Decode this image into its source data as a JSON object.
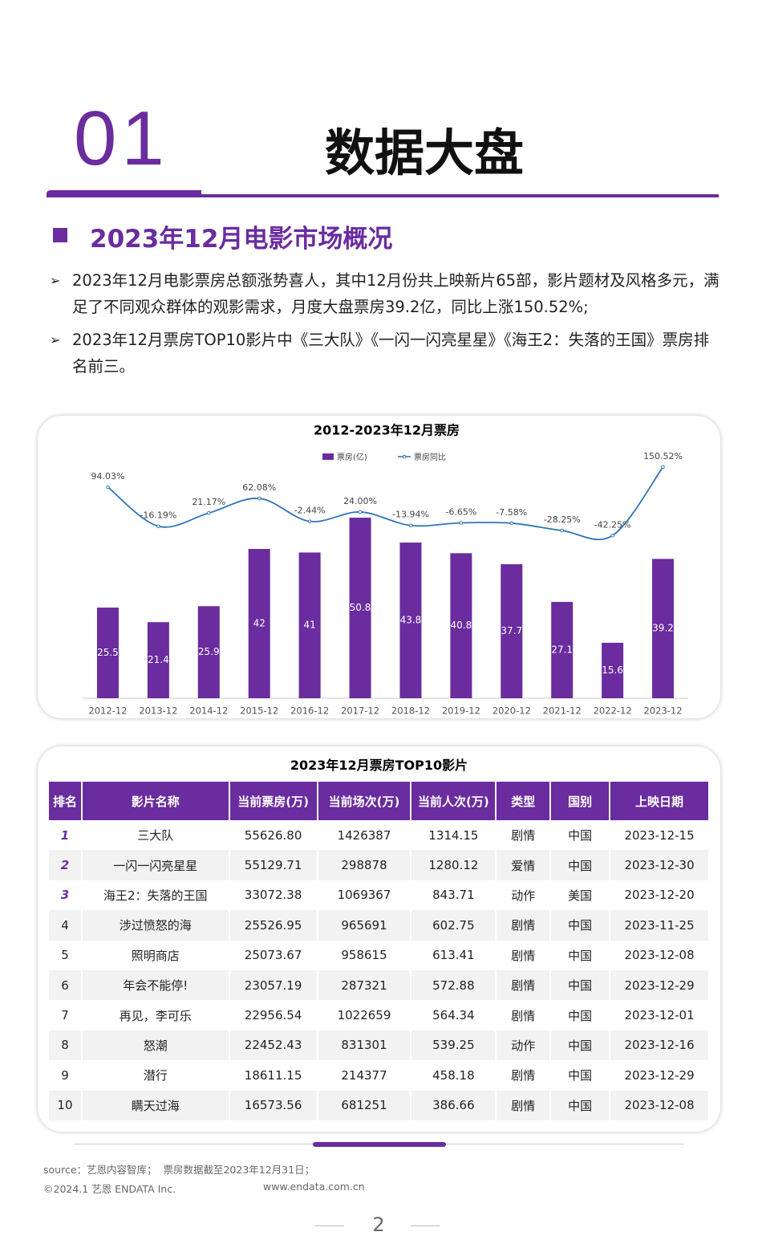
{
  "header": {
    "number": "01",
    "title": "数据大盘"
  },
  "section": {
    "title": "2023年12月电影市场概况",
    "bullets": [
      "2023年12月电影票房总额涨势喜人，其中12月份共上映新片65部，影片题材及风格多元，满足了不同观众群体的观影需求，月度大盘票房39.2亿，同比上涨150.52%;",
      "2023年12月票房TOP10影片中《三大队》《一闪一闪亮星星》《海王2：失落的王国》票房排名前三。"
    ]
  },
  "chart_data": {
    "type": "bar-line",
    "title": "2012-2023年12月票房",
    "categories": [
      "2012-12",
      "2013-12",
      "2014-12",
      "2015-12",
      "2016-12",
      "2017-12",
      "2018-12",
      "2019-12",
      "2020-12",
      "2021-12",
      "2022-12",
      "2023-12"
    ],
    "series": [
      {
        "name": "票房(亿)",
        "type": "bar",
        "color": "#6a2c9e",
        "values": [
          25.5,
          21.4,
          25.9,
          42.0,
          41.0,
          50.8,
          43.8,
          40.8,
          37.7,
          27.1,
          15.6,
          39.2
        ]
      },
      {
        "name": "票房同比",
        "type": "line",
        "axis": "y2",
        "color": "#2e75b6",
        "values": [
          94.03,
          -16.19,
          21.17,
          62.08,
          -2.44,
          24.0,
          -13.94,
          -6.65,
          -7.58,
          -28.25,
          -42.25,
          150.52
        ],
        "value_labels": [
          "94.03%",
          "-16.19%",
          "21.17%",
          "62.08%",
          "-2.44%",
          "24.00%",
          "-13.94%",
          "-6.65%",
          "-7.58%",
          "-28.25%",
          "-42.25%",
          "150.52%"
        ]
      }
    ],
    "ylim": [
      0,
      70
    ],
    "y2lim": [
      -500,
      200
    ],
    "legend": "top"
  },
  "table": {
    "title": "2023年12月票房TOP10影片",
    "headers": [
      "排名",
      "影片名称",
      "当前票房(万)",
      "当前场次(万)",
      "当前人次(万)",
      "类型",
      "国别",
      "上映日期"
    ],
    "rows": [
      [
        "1",
        "三大队",
        "55626.80",
        "1426387",
        "1314.15",
        "剧情",
        "中国",
        "2023-12-15"
      ],
      [
        "2",
        "一闪一闪亮星星",
        "55129.71",
        "298878",
        "1280.12",
        "爱情",
        "中国",
        "2023-12-30"
      ],
      [
        "3",
        "海王2：失落的王国",
        "33072.38",
        "1069367",
        "843.71",
        "动作",
        "美国",
        "2023-12-20"
      ],
      [
        "4",
        "涉过愤怒的海",
        "25526.95",
        "965691",
        "602.75",
        "剧情",
        "中国",
        "2023-11-25"
      ],
      [
        "5",
        "照明商店",
        "25073.67",
        "958615",
        "613.41",
        "剧情",
        "中国",
        "2023-12-08"
      ],
      [
        "6",
        "年会不能停!",
        "23057.19",
        "287321",
        "572.88",
        "剧情",
        "中国",
        "2023-12-29"
      ],
      [
        "7",
        "再见，李可乐",
        "22956.54",
        "1022659",
        "564.34",
        "剧情",
        "中国",
        "2023-12-01"
      ],
      [
        "8",
        "怒潮",
        "22452.43",
        "831301",
        "539.25",
        "动作",
        "中国",
        "2023-12-16"
      ],
      [
        "9",
        "潜行",
        "18611.15",
        "214377",
        "458.18",
        "剧情",
        "中国",
        "2023-12-29"
      ],
      [
        "10",
        "瞒天过海",
        "16573.56",
        "681251",
        "386.66",
        "剧情",
        "中国",
        "2023-12-08"
      ]
    ]
  },
  "footer": {
    "source": "source：艺恩内容智库；  票房数据截至2023年12月31日；",
    "copyright": "©2024.1 艺恩 ENDATA Inc.",
    "website": "www.endata.com.cn",
    "page": "2"
  }
}
